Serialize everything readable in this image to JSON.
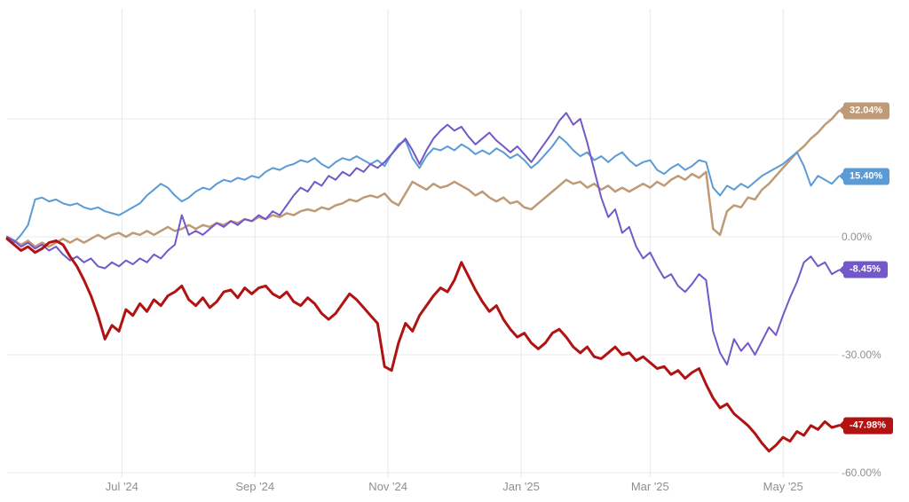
{
  "chart_data": {
    "type": "line",
    "title": "",
    "grid": true,
    "background": "#ffffff",
    "grid_color": "#e8e8e8",
    "axis_label_color": "#8f8f8f",
    "x_ticks": [
      {
        "label": "Jul '24",
        "t": 0.138
      },
      {
        "label": "Sep '24",
        "t": 0.298
      },
      {
        "label": "Nov '24",
        "t": 0.458
      },
      {
        "label": "Jan '25",
        "t": 0.618
      },
      {
        "label": "Mar '25",
        "t": 0.773
      },
      {
        "label": "May '25",
        "t": 0.933
      }
    ],
    "y_axis": {
      "unit": "%",
      "range": [
        -62,
        58
      ],
      "ticks": [
        {
          "value": 30,
          "label": ""
        },
        {
          "value": 0,
          "label": "0.00%"
        },
        {
          "value": -30,
          "label": "-30.00%"
        },
        {
          "value": -60,
          "label": "-60.00%"
        }
      ]
    },
    "series": [
      {
        "name": "series-tan",
        "color": "#bf9a76",
        "stroke_width": 2.5,
        "end_value": 32.04,
        "end_label": "32.04%",
        "values": [
          0,
          -1,
          -2,
          -1,
          -2.5,
          -1.5,
          -2.5,
          -1.5,
          -0.5,
          -1.5,
          -0.5,
          -1.5,
          -0.5,
          0.5,
          -0.5,
          0.5,
          1,
          0,
          1,
          0.5,
          1.5,
          0.5,
          1.5,
          2.5,
          1.5,
          2,
          3,
          2,
          3,
          2.5,
          3.5,
          3,
          4,
          3.5,
          4.5,
          4,
          5,
          4.5,
          5.5,
          5,
          6,
          5.5,
          6.5,
          7,
          6.5,
          7.5,
          7,
          8,
          8.5,
          9.5,
          9,
          10,
          10.5,
          10,
          11,
          9,
          8,
          11,
          14,
          13,
          12,
          13.5,
          12.5,
          13,
          14,
          13,
          12,
          10.5,
          11.5,
          10,
          9,
          10,
          8.5,
          9,
          7.5,
          7,
          8.5,
          10,
          11.5,
          13,
          14.5,
          13.5,
          14,
          12.5,
          13.5,
          12,
          13,
          11.5,
          12.5,
          11.5,
          12.5,
          13.5,
          12.5,
          14,
          13,
          14.5,
          15.5,
          14.5,
          16,
          15,
          16.5,
          2,
          0.5,
          6.5,
          8,
          7.5,
          10,
          9.5,
          12,
          13.5,
          15.5,
          17.5,
          19.5,
          21.5,
          23,
          25,
          26.5,
          28.5,
          30,
          32.04
        ]
      },
      {
        "name": "series-blue",
        "color": "#5b9bd5",
        "stroke_width": 2,
        "end_value": 15.4,
        "end_label": "15.40%",
        "values": [
          0,
          -1.5,
          0.5,
          3,
          9.5,
          10,
          9,
          9.5,
          8.5,
          8,
          8.5,
          7.5,
          7,
          7.5,
          6.5,
          6,
          5.5,
          6.5,
          7.5,
          8.5,
          10.5,
          12,
          13.5,
          12.5,
          10.5,
          9,
          10,
          11.5,
          12.5,
          12,
          13.5,
          14.5,
          14,
          15,
          14.5,
          15.5,
          15,
          16.5,
          17.5,
          17,
          18,
          18.5,
          19.5,
          19,
          20,
          18.5,
          17.5,
          19,
          20,
          19.5,
          20.5,
          19.5,
          18.5,
          19.5,
          18,
          21,
          23.5,
          24.5,
          20,
          17.5,
          20.5,
          22.5,
          22,
          23,
          22,
          23.5,
          22.5,
          21,
          22,
          21,
          22.5,
          21.5,
          20,
          21,
          19.5,
          17.5,
          19,
          21,
          23,
          25.5,
          24,
          22,
          20.5,
          21.5,
          19.5,
          20.5,
          19,
          20.5,
          21.5,
          19.5,
          18,
          19,
          19.5,
          17,
          16,
          17.5,
          18.5,
          17,
          18,
          19.5,
          19,
          12.5,
          10.5,
          13,
          12,
          13.5,
          12.5,
          14,
          15.5,
          16.5,
          17.5,
          18.5,
          20,
          21.5,
          18,
          13,
          15.5,
          14.5,
          13.5,
          15.4
        ]
      },
      {
        "name": "series-purple",
        "color": "#7258c8",
        "stroke_width": 2,
        "end_value": -8.45,
        "end_label": "-8.45%",
        "values": [
          0,
          -1,
          -2.5,
          -1.5,
          -3,
          -2,
          -3.5,
          -2.5,
          -4.5,
          -6,
          -5,
          -6.5,
          -5.5,
          -7.5,
          -8,
          -6.5,
          -7.5,
          -6,
          -7,
          -5.5,
          -6.5,
          -4.5,
          -5.5,
          -3.5,
          -2,
          5.5,
          0.5,
          1.5,
          0.5,
          2,
          3.5,
          2.5,
          4,
          3,
          4.5,
          4,
          5.5,
          4.5,
          6.5,
          5.5,
          8,
          10.5,
          12.5,
          11.5,
          14,
          13,
          15.5,
          14.5,
          16.5,
          15.5,
          17.5,
          16.5,
          18.5,
          17.5,
          19,
          21,
          23,
          25,
          22,
          18.5,
          22,
          25,
          27,
          28.5,
          27,
          28,
          25.5,
          23.5,
          25,
          26.5,
          24.5,
          23,
          21.5,
          23,
          21,
          19,
          21.5,
          24,
          26.5,
          29.5,
          31.5,
          28.5,
          30,
          24,
          17,
          10,
          5,
          7,
          1,
          2.5,
          -2.5,
          -5.5,
          -4,
          -7.5,
          -10.5,
          -9.5,
          -12.5,
          -14,
          -12,
          -9.5,
          -11,
          -24,
          -29.5,
          -32.5,
          -26,
          -29,
          -27,
          -30,
          -26.5,
          -23,
          -25,
          -20,
          -15.5,
          -11.5,
          -6.5,
          -5,
          -7.5,
          -6.5,
          -9.5,
          -8.45
        ]
      },
      {
        "name": "series-red",
        "color": "#b11212",
        "stroke_width": 3,
        "end_value": -47.98,
        "end_label": "-47.98%",
        "values": [
          -0.5,
          -2,
          -3.5,
          -2.5,
          -4,
          -3,
          -1.5,
          -1,
          -2,
          -5,
          -7.5,
          -11,
          -15,
          -20,
          -26,
          -22.5,
          -24,
          -18.5,
          -20,
          -17,
          -19,
          -16,
          -17.5,
          -15,
          -14,
          -12.5,
          -16,
          -17.5,
          -15.5,
          -18,
          -16.5,
          -14,
          -13.5,
          -15.5,
          -13,
          -14.5,
          -13,
          -12.5,
          -14.5,
          -15.5,
          -14,
          -16.5,
          -17.5,
          -15.5,
          -17,
          -19.5,
          -21,
          -19.5,
          -17,
          -14.5,
          -16,
          -18,
          -20,
          -22,
          -33,
          -34,
          -27,
          -22,
          -24,
          -20,
          -17.5,
          -15,
          -13,
          -14,
          -11,
          -6.5,
          -10,
          -13.5,
          -16.5,
          -19,
          -17.5,
          -21,
          -23.5,
          -25.5,
          -24.5,
          -27,
          -28.5,
          -27,
          -24.5,
          -23.5,
          -25.5,
          -28,
          -29.5,
          -28,
          -30.5,
          -31,
          -29.5,
          -28,
          -30,
          -29.5,
          -31.5,
          -30.5,
          -32,
          -33.5,
          -33,
          -35,
          -34,
          -36,
          -34.5,
          -33.5,
          -37.5,
          -41,
          -43.5,
          -42.5,
          -45,
          -46.5,
          -48,
          -50,
          -52.5,
          -54.5,
          -53,
          -51,
          -52,
          -49.5,
          -50.5,
          -48,
          -49,
          -47,
          -48.5,
          -47.98
        ]
      }
    ]
  }
}
